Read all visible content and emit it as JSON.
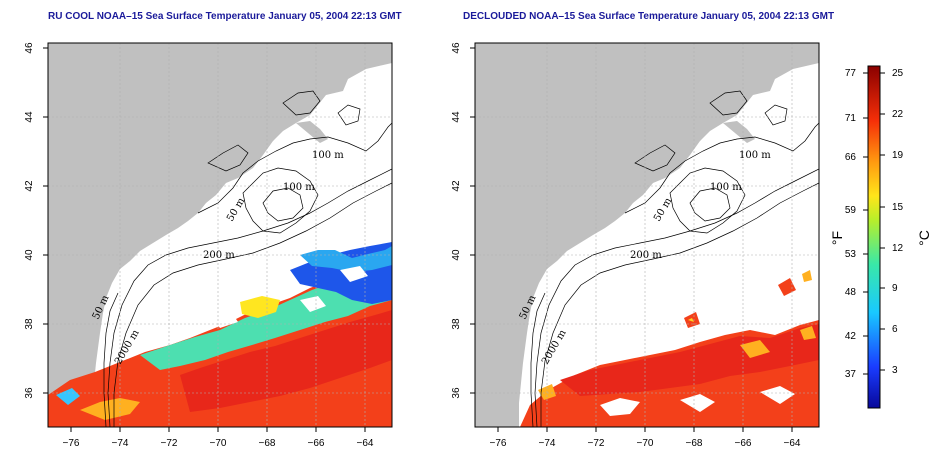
{
  "left_map": {
    "title": "RU COOL NOAA–15 Sea Surface Temperature January 05, 2004 22:13 GMT"
  },
  "right_map": {
    "title": "DECLOUDED NOAA–15 Sea Surface Temperature January 05, 2004 22:13 GMT"
  },
  "axes": {
    "x_ticks": [
      "−76",
      "−74",
      "−72",
      "−70",
      "−68",
      "−66",
      "−64"
    ],
    "y_ticks": [
      "46",
      "44",
      "42",
      "40",
      "38",
      "36"
    ],
    "lon_range": [
      -77,
      -63
    ],
    "lat_range": [
      35,
      46
    ]
  },
  "contour_labels": [
    "100 m",
    "100 m",
    "50 m",
    "200 m",
    "50 m",
    "2000 m"
  ],
  "colorbar": {
    "fahrenheit_label": "°F",
    "celsius_label": "°C",
    "fahrenheit_ticks": [
      "77",
      "71",
      "66",
      "59",
      "53",
      "48",
      "42",
      "37"
    ],
    "celsius_ticks": [
      "25",
      "22",
      "19",
      "15",
      "12",
      "9",
      "6",
      "3"
    ]
  },
  "colors": {
    "land": "#c0c0c0",
    "ocean": "#ffffff",
    "title_blue": "#1a1a9a"
  }
}
